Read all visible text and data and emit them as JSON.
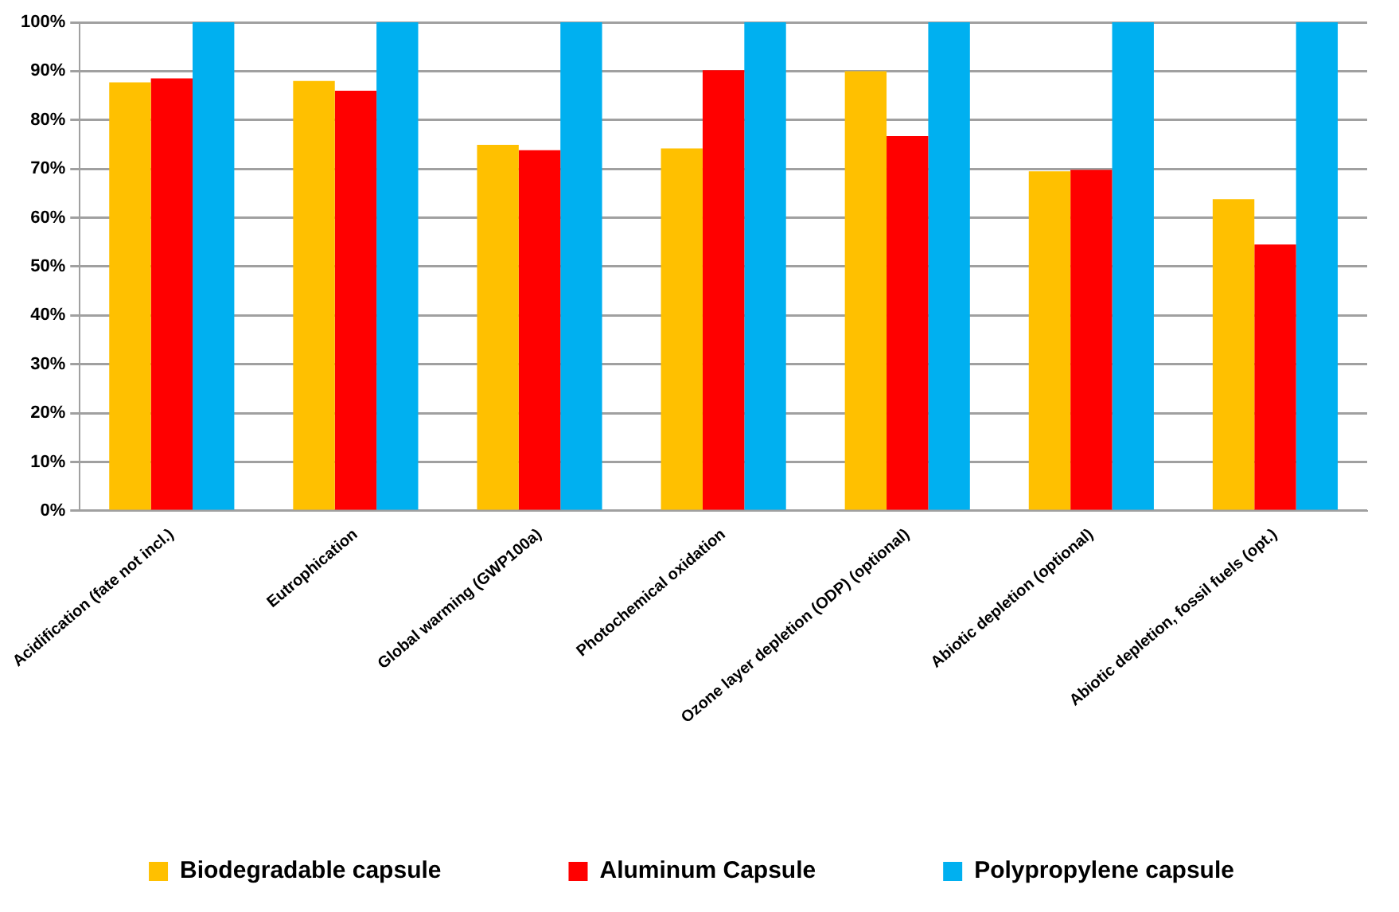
{
  "chart_data": {
    "type": "bar",
    "categories": [
      "Acidification (fate not incl.)",
      "Eutrophication",
      "Global warming (GWP100a)",
      "Photochemical oxidation",
      "Ozone layer depletion (ODP) (optional)",
      "Abiotic depletion (optional)",
      "Abiotic depletion, fossil fuels (opt.)"
    ],
    "series": [
      {
        "name": "Biodegradable capsule",
        "color": "#ffc000",
        "values": [
          87.7,
          88,
          74.9,
          74.2,
          90,
          69.5,
          63.8
        ]
      },
      {
        "name": "Aluminum Capsule",
        "color": "#ff0000",
        "values": [
          88.5,
          86,
          73.8,
          90.2,
          76.7,
          69.8,
          54.5
        ]
      },
      {
        "name": "Polypropylene capsule",
        "color": "#00b0f0",
        "values": [
          100,
          100,
          100,
          100,
          100,
          100,
          100
        ]
      }
    ],
    "ylim": [
      0,
      100
    ],
    "yticks": [
      {
        "value": 0,
        "label": "0%"
      },
      {
        "value": 10,
        "label": "10%"
      },
      {
        "value": 20,
        "label": "20%"
      },
      {
        "value": 30,
        "label": "30%"
      },
      {
        "value": 40,
        "label": "40%"
      },
      {
        "value": 50,
        "label": "50%"
      },
      {
        "value": 60,
        "label": "60%"
      },
      {
        "value": 70,
        "label": "70%"
      },
      {
        "value": 80,
        "label": "80%"
      },
      {
        "value": 90,
        "label": "90%"
      },
      {
        "value": 100,
        "label": "100%"
      }
    ],
    "grid": "y",
    "legend": "bottom"
  }
}
